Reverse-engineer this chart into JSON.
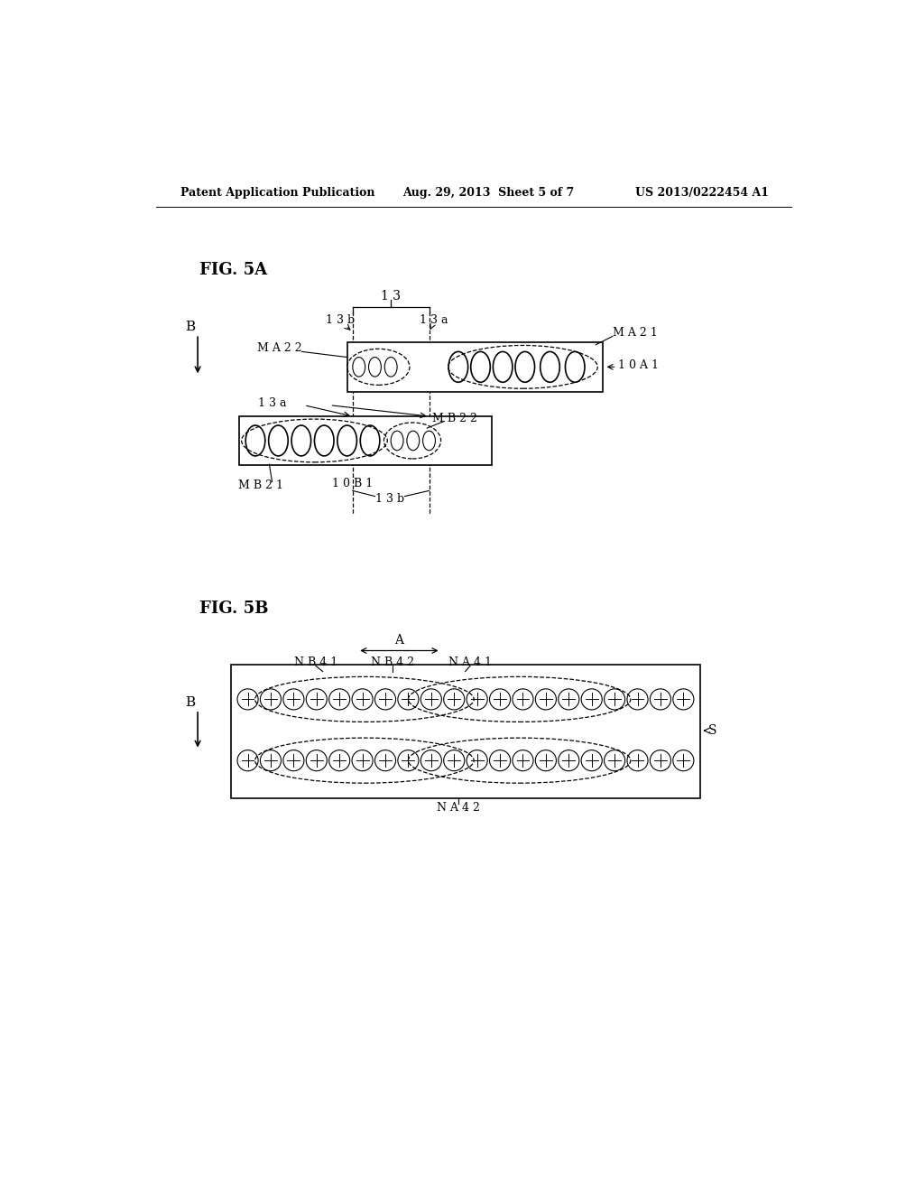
{
  "bg_color": "#ffffff",
  "text_color": "#000000",
  "header_left": "Patent Application Publication",
  "header_mid": "Aug. 29, 2013  Sheet 5 of 7",
  "header_right": "US 2013/0222454 A1",
  "fig5a_title": "FIG. 5A",
  "fig5b_title": "FIG. 5B",
  "line_color": "#000000",
  "line_width": 1.2
}
